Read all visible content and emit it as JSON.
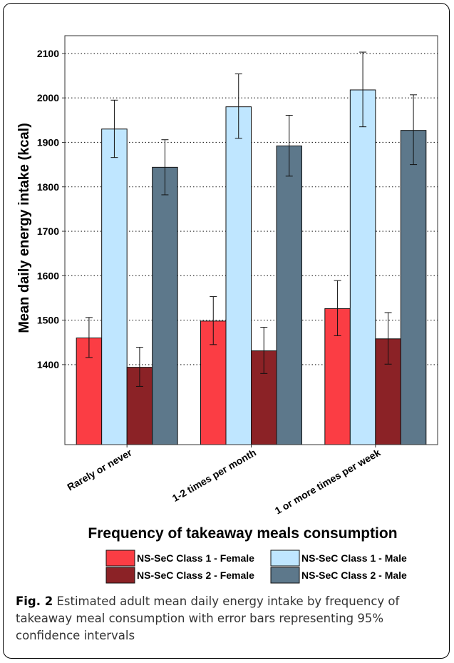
{
  "chart_data": {
    "type": "bar",
    "xlabel": "Frequency of takeaway meals consumption",
    "ylabel": "Mean daily energy intake (kcal)",
    "categories": [
      "Rarely or never",
      "1-2 times per month",
      "1 or more times per week"
    ],
    "yticks": [
      1400,
      1500,
      1600,
      1700,
      1800,
      1900,
      2000,
      2100
    ],
    "ylim": [
      1220,
      2140
    ],
    "grid": true,
    "legend_position": "bottom",
    "series": [
      {
        "name": "NS-SeC Class 1 - Female",
        "color": "#fb3d44",
        "values": [
          1460,
          1498,
          1526
        ],
        "lower": [
          1416,
          1445,
          1465
        ],
        "upper": [
          1506,
          1553,
          1589
        ]
      },
      {
        "name": "NS-SeC Class 1 - Male",
        "color": "#bfe6ff",
        "values": [
          1930,
          1980,
          2018
        ],
        "lower": [
          1866,
          1909,
          1935
        ],
        "upper": [
          1995,
          2054,
          2103
        ]
      },
      {
        "name": "NS-SeC Class 2 - Female",
        "color": "#8b2226",
        "values": [
          1394,
          1431,
          1458
        ],
        "lower": [
          1351,
          1380,
          1401
        ],
        "upper": [
          1439,
          1484,
          1517
        ]
      },
      {
        "name": "NS-SeC Class 2 - Male",
        "color": "#5d788b",
        "values": [
          1844,
          1892,
          1927
        ],
        "lower": [
          1782,
          1824,
          1850
        ],
        "upper": [
          1906,
          1961,
          2007
        ]
      }
    ]
  },
  "caption": {
    "label": "Fig. 2",
    "text": "Estimated adult mean daily energy intake by frequency of takeaway meal consumption with error bars representing 95% confidence intervals"
  }
}
